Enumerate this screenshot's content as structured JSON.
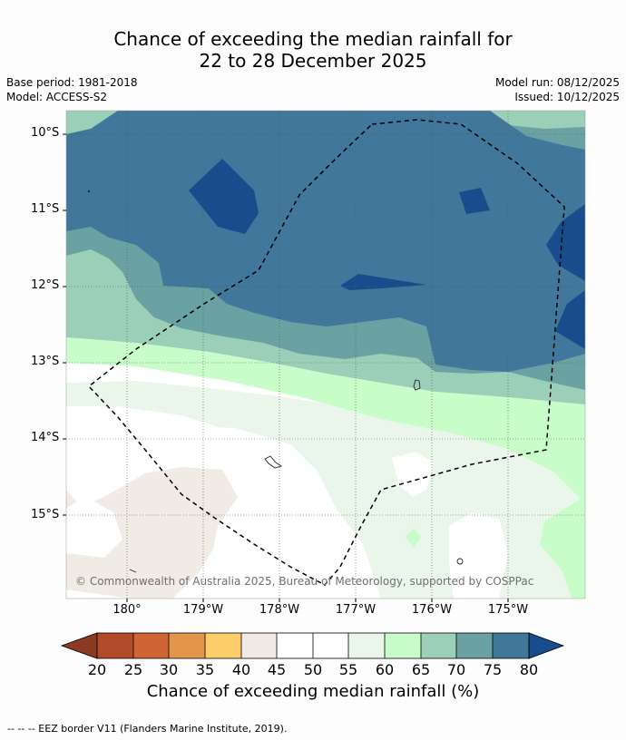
{
  "title": {
    "line1": "Chance of exceeding the median rainfall for",
    "line2": "22 to 28 December 2025"
  },
  "meta": {
    "base_period": "Base period: 1981-2018",
    "model": "Model: ACCESS-S2",
    "model_run": "Model run: 08/12/2025",
    "issued": "Issued: 10/12/2025"
  },
  "map": {
    "latitude_labels": [
      "10°S",
      "11°S",
      "12°S",
      "13°S",
      "14°S",
      "15°S"
    ],
    "longitude_labels": [
      "180°",
      "179°W",
      "178°W",
      "177°W",
      "176°W",
      "175°W"
    ],
    "copyright": "© Commonwealth of Australia 2025, Bureau of Meteorology, supported by COSPPac",
    "eez_border": "EEZ border (dashed)"
  },
  "colorbar": {
    "title": "Chance of exceeding median rainfall (%)",
    "ticks": [
      "20",
      "25",
      "30",
      "35",
      "40",
      "45",
      "50",
      "55",
      "60",
      "65",
      "70",
      "75",
      "80"
    ],
    "colors": {
      "below_20": "#8b3a24",
      "c20_25": "#b34a2a",
      "c25_30": "#cf6535",
      "c30_35": "#e2954b",
      "c35_40": "#fccb6a",
      "c40_45": "#f0ebe5",
      "c45_50": "#ffffff",
      "c50_55": "#ffffff",
      "c55_60": "#eaf6ea",
      "c60_65": "#c8fdca",
      "c65_70": "#9ccfb7",
      "c70_75": "#6aa1a3",
      "c75_80": "#41779a",
      "above_80": "#174d8c"
    }
  },
  "footer": {
    "note": "--  --  -- EEZ border V11 (Flanders Marine Institute, 2019)."
  }
}
